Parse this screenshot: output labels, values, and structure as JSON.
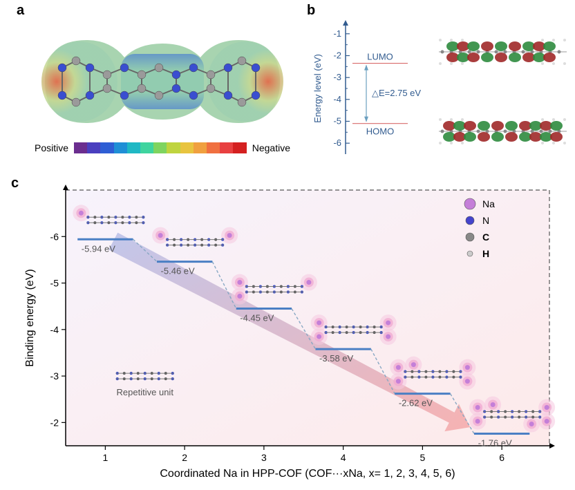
{
  "panel_a": {
    "label": "a",
    "spectrum_colors": [
      "#6b2e8f",
      "#4a3fbf",
      "#2e5ed4",
      "#1f8fd6",
      "#1fb8c4",
      "#3fd49f",
      "#7fd45f",
      "#bfd43f",
      "#e8c43f",
      "#f0a03f",
      "#f07040",
      "#e84040",
      "#d42020"
    ],
    "positive_label": "Positive",
    "negative_label": "Negative",
    "positive_fontsize": 14,
    "negative_fontsize": 14
  },
  "panel_b": {
    "label": "b",
    "y_axis_label": "Energy level (eV)",
    "lumo_label": "LUMO",
    "homo_label": "HOMO",
    "delta_label": "△E=2.75 eV",
    "tick_labels": [
      "-1",
      "-2",
      "-3",
      "-4",
      "-5",
      "-6"
    ],
    "tick_values": [
      -1,
      -2,
      -3,
      -4,
      -5,
      -6
    ],
    "lumo_energy": -2.35,
    "homo_energy": -5.1,
    "axis_color": "#315b8f",
    "text_color": "#315b8f",
    "lumo_line_color": "#d86b6b",
    "homo_line_color": "#d86b6b",
    "arrow_color": "#6b9fbf",
    "fontsize_axis": 13,
    "fontsize_label": 13
  },
  "panel_c": {
    "label": "c",
    "x_axis_label": "Coordinated Na in HPP-COF (COF···xNa, x= 1, 2, 3, 4, 5, 6)",
    "y_axis_label": "Binding energy (eV)",
    "xlim": [
      0.5,
      6.6
    ],
    "ylim": [
      -7.0,
      -1.5
    ],
    "xtick_values": [
      1,
      2,
      3,
      4,
      5,
      6
    ],
    "ytick_labels": [
      "-6",
      "-5",
      "-4",
      "-3",
      "-2"
    ],
    "ytick_values": [
      -6,
      -5,
      -4,
      -3,
      -2
    ],
    "data": [
      {
        "x": 1,
        "y": -5.94,
        "label": "-5.94 eV"
      },
      {
        "x": 2,
        "y": -5.46,
        "label": "-5.46 eV"
      },
      {
        "x": 3,
        "y": -4.45,
        "label": "-4.45 eV"
      },
      {
        "x": 4,
        "y": -3.58,
        "label": "-3.58 eV"
      },
      {
        "x": 5,
        "y": -2.62,
        "label": "-2.62 eV"
      },
      {
        "x": 6,
        "y": -1.76,
        "label": "-1.76 eV"
      }
    ],
    "step_color": "#4a7fc4",
    "step_dash_color": "#88a8c4",
    "value_label_color": "#555555",
    "repetitive_label": "Repetitive unit",
    "legend": [
      {
        "label": "Na",
        "color": "#c47fd8"
      },
      {
        "label": "N",
        "color": "#4444cc"
      },
      {
        "label": "C",
        "color": "#888888"
      },
      {
        "label": "H",
        "color": "#cccccc"
      }
    ],
    "bg_gradient_from": "#f7f3fc",
    "bg_gradient_to": "#fdeaea",
    "arrow_from": "#b8bfe8",
    "arrow_to": "#f5a8a8",
    "fontsize_axis": 16,
    "fontsize_tick": 14,
    "fontsize_value": 13,
    "fontsize_legend": 14
  }
}
